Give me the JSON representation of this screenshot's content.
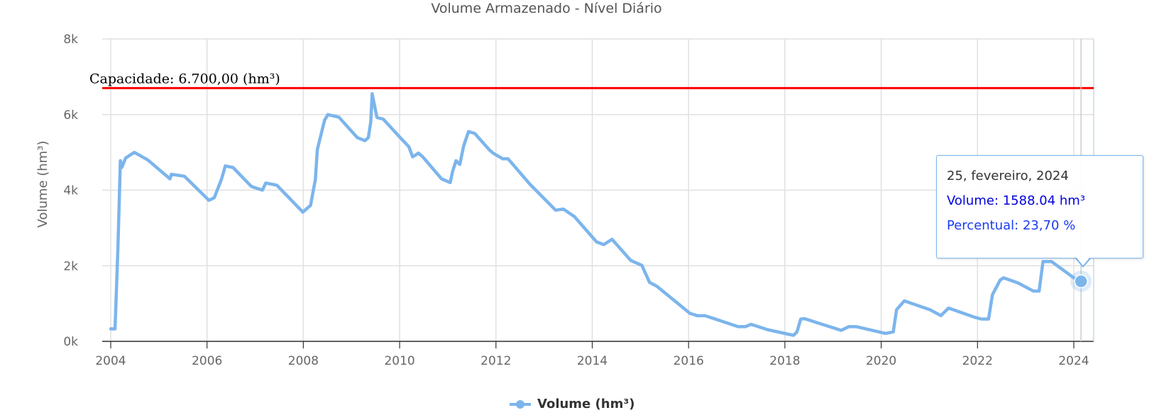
{
  "chart_data": {
    "type": "line",
    "title": "Volume Armazenado - Nível Diário",
    "ylabel": "Volume (hm³)",
    "xlabel": "",
    "ylim": [
      0,
      8000
    ],
    "xlim": [
      2004,
      2024.4
    ],
    "y_ticks": [
      {
        "value": 0,
        "label": "0k"
      },
      {
        "value": 2000,
        "label": "2k"
      },
      {
        "value": 4000,
        "label": "4k"
      },
      {
        "value": 6000,
        "label": "6k"
      },
      {
        "value": 8000,
        "label": "8k"
      }
    ],
    "x_ticks": [
      {
        "value": 2004,
        "label": "2004"
      },
      {
        "value": 2006,
        "label": "2006"
      },
      {
        "value": 2008,
        "label": "2008"
      },
      {
        "value": 2010,
        "label": "2010"
      },
      {
        "value": 2012,
        "label": "2012"
      },
      {
        "value": 2014,
        "label": "2014"
      },
      {
        "value": 2016,
        "label": "2016"
      },
      {
        "value": 2018,
        "label": "2018"
      },
      {
        "value": 2020,
        "label": "2020"
      },
      {
        "value": 2022,
        "label": "2022"
      },
      {
        "value": 2024,
        "label": "2024"
      }
    ],
    "grid": true,
    "legend_position": "bottom-center",
    "plot_line": {
      "value": 6700,
      "label": "Capacidade: 6.700,00 (hm³)",
      "color": "#ff0000"
    },
    "series": [
      {
        "name": "Volume (hm³)",
        "color": "#7cb5ec",
        "x": [
          2004.0,
          2004.09,
          2004.15,
          2004.2,
          2004.23,
          2004.31,
          2004.49,
          2004.77,
          2005.23,
          2005.26,
          2005.53,
          2006.04,
          2006.15,
          2006.3,
          2006.38,
          2006.54,
          2006.92,
          2007.15,
          2007.22,
          2007.45,
          2007.99,
          2008.15,
          2008.25,
          2008.29,
          2008.44,
          2008.51,
          2008.74,
          2009.12,
          2009.28,
          2009.35,
          2009.4,
          2009.43,
          2009.5,
          2009.53,
          2009.66,
          2010.04,
          2010.19,
          2010.27,
          2010.39,
          2010.48,
          2010.87,
          2011.05,
          2011.1,
          2011.17,
          2011.25,
          2011.33,
          2011.43,
          2011.56,
          2011.86,
          2011.94,
          2012.14,
          2012.25,
          2012.71,
          2013.24,
          2013.4,
          2013.63,
          2014.09,
          2014.24,
          2014.41,
          2014.8,
          2015.03,
          2015.19,
          2015.34,
          2016.03,
          2016.18,
          2016.34,
          2017.03,
          2017.18,
          2017.3,
          2017.64,
          2018.18,
          2018.25,
          2018.33,
          2018.41,
          2019.17,
          2019.33,
          2019.48,
          2020.09,
          2020.25,
          2020.32,
          2020.48,
          2021.01,
          2021.24,
          2021.4,
          2021.93,
          2022.08,
          2022.23,
          2022.31,
          2022.47,
          2022.54,
          2022.85,
          2023.16,
          2023.28,
          2023.36,
          2023.54,
          2024.0,
          2024.15
        ],
        "y": [
          330,
          330,
          2500,
          4780,
          4600,
          4850,
          5000,
          4800,
          4300,
          4420,
          4370,
          3730,
          3800,
          4290,
          4640,
          4600,
          4100,
          4000,
          4190,
          4130,
          3420,
          3600,
          4290,
          5070,
          5850,
          6000,
          5930,
          5390,
          5310,
          5390,
          5800,
          6550,
          6100,
          5920,
          5880,
          5350,
          5150,
          4880,
          4980,
          4880,
          4300,
          4200,
          4490,
          4780,
          4680,
          5170,
          5550,
          5500,
          5070,
          4980,
          4830,
          4830,
          4150,
          3470,
          3500,
          3300,
          2630,
          2560,
          2700,
          2140,
          2010,
          1560,
          1460,
          740,
          680,
          680,
          390,
          390,
          450,
          310,
          160,
          250,
          590,
          600,
          290,
          390,
          390,
          210,
          250,
          840,
          1070,
          840,
          680,
          880,
          640,
          590,
          590,
          1230,
          1620,
          1680,
          1540,
          1330,
          1330,
          2110,
          2110,
          1680,
          1588.04
        ]
      }
    ]
  },
  "tooltip": {
    "date": "25, fevereiro, 2024",
    "volume": "Volume: 1588.04 hm³",
    "percentual": "Percentual: 23,70 %"
  },
  "legend": {
    "label": "Volume (hm³)"
  }
}
